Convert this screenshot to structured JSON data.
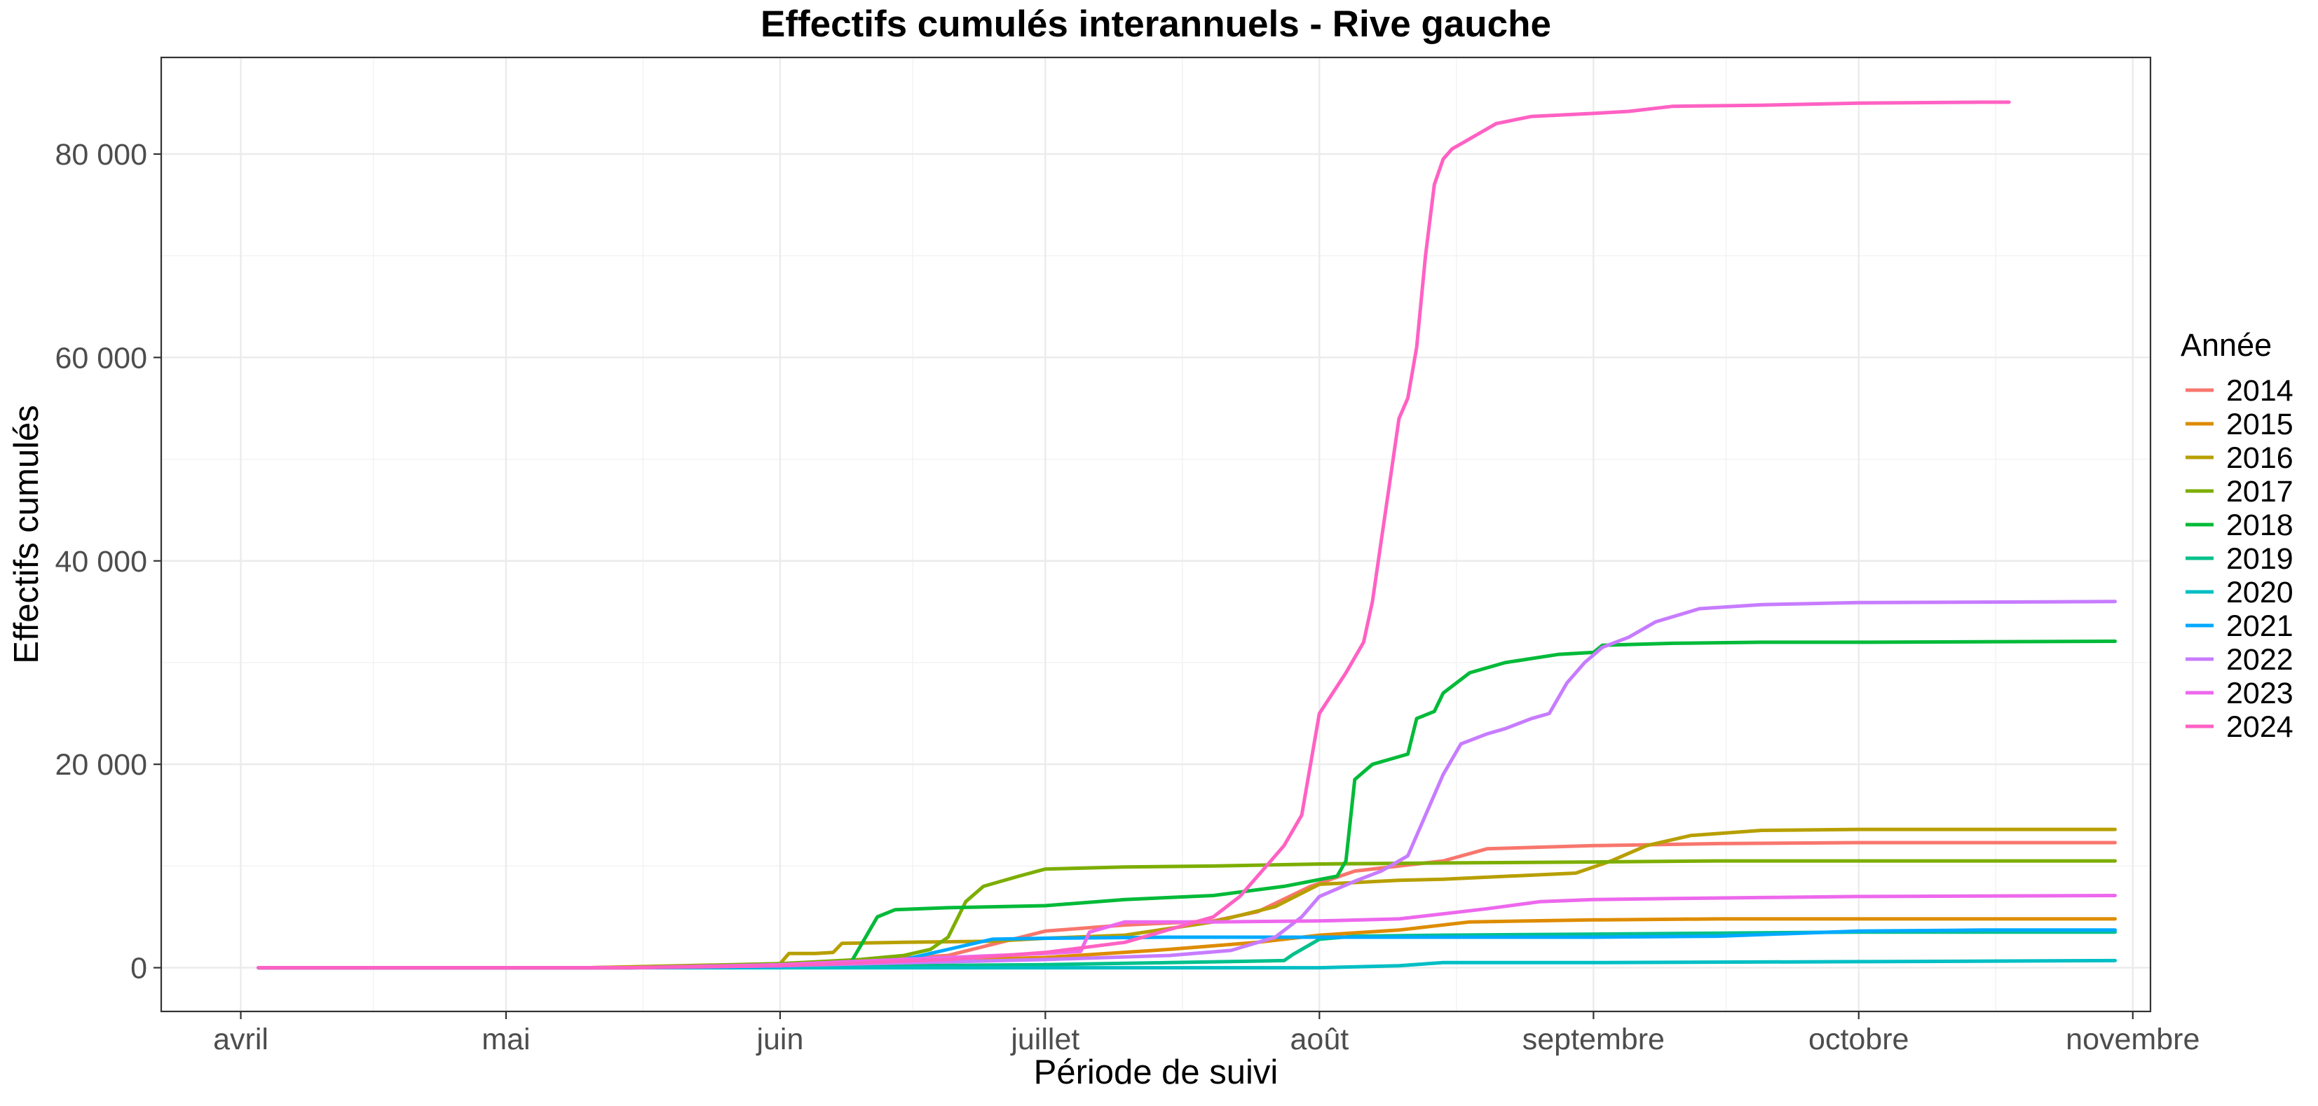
{
  "chart_data": {
    "type": "line",
    "title": "Effectifs cumulés interannuels - Rive gauche",
    "xlabel": "Période de suivi",
    "ylabel": "Effectifs cumulés",
    "x_unit": "date",
    "xlim": [
      "2000-03-23",
      "2000-11-03"
    ],
    "ylim": [
      -4300,
      89500
    ],
    "x_ticks": [
      {
        "label": "avril",
        "date": "2000-04-01"
      },
      {
        "label": "mai",
        "date": "2000-05-01"
      },
      {
        "label": "juin",
        "date": "2000-06-01"
      },
      {
        "label": "juillet",
        "date": "2000-07-01"
      },
      {
        "label": "août",
        "date": "2000-08-01"
      },
      {
        "label": "septembre",
        "date": "2000-09-01"
      },
      {
        "label": "octobre",
        "date": "2000-10-01"
      },
      {
        "label": "novembre",
        "date": "2000-11-01"
      }
    ],
    "y_ticks": [
      {
        "label": "0",
        "value": 0
      },
      {
        "label": "20 000",
        "value": 20000
      },
      {
        "label": "40 000",
        "value": 40000
      },
      {
        "label": "60 000",
        "value": 60000
      },
      {
        "label": "80 000",
        "value": 80000
      }
    ],
    "grid": true,
    "legend": {
      "title": "Année",
      "position": "right"
    },
    "series": [
      {
        "name": "2014",
        "color": "#F8766D",
        "points": [
          [
            "04-03",
            0
          ],
          [
            "05-15",
            0
          ],
          [
            "06-01",
            300
          ],
          [
            "06-20",
            1200
          ],
          [
            "07-01",
            3600
          ],
          [
            "07-10",
            4200
          ],
          [
            "07-20",
            4600
          ],
          [
            "07-25",
            5500
          ],
          [
            "07-31",
            8000
          ],
          [
            "08-05",
            9500
          ],
          [
            "08-15",
            10500
          ],
          [
            "08-20",
            11700
          ],
          [
            "09-01",
            12000
          ],
          [
            "09-15",
            12200
          ],
          [
            "10-01",
            12300
          ],
          [
            "10-30",
            12300
          ]
        ]
      },
      {
        "name": "2015",
        "color": "#DE8C00",
        "points": [
          [
            "04-03",
            0
          ],
          [
            "05-10",
            0
          ],
          [
            "06-01",
            300
          ],
          [
            "07-01",
            1000
          ],
          [
            "07-15",
            1800
          ],
          [
            "07-25",
            2500
          ],
          [
            "08-01",
            3200
          ],
          [
            "08-10",
            3700
          ],
          [
            "08-18",
            4500
          ],
          [
            "09-01",
            4700
          ],
          [
            "09-15",
            4800
          ],
          [
            "10-30",
            4800
          ]
        ]
      },
      {
        "name": "2016",
        "color": "#B79F00",
        "points": [
          [
            "04-03",
            0
          ],
          [
            "05-10",
            0
          ],
          [
            "06-01",
            400
          ],
          [
            "06-02",
            1400
          ],
          [
            "06-05",
            1400
          ],
          [
            "06-07",
            1500
          ],
          [
            "06-08",
            2400
          ],
          [
            "06-15",
            2500
          ],
          [
            "06-25",
            2600
          ],
          [
            "07-01",
            2900
          ],
          [
            "07-10",
            3200
          ],
          [
            "07-20",
            4500
          ],
          [
            "07-27",
            6000
          ],
          [
            "08-01",
            8200
          ],
          [
            "08-10",
            8600
          ],
          [
            "08-15",
            8700
          ],
          [
            "08-30",
            9300
          ],
          [
            "09-03",
            10500
          ],
          [
            "09-07",
            12000
          ],
          [
            "09-12",
            13000
          ],
          [
            "09-20",
            13500
          ],
          [
            "10-01",
            13600
          ],
          [
            "10-30",
            13600
          ]
        ]
      },
      {
        "name": "2017",
        "color": "#7CAE00",
        "points": [
          [
            "04-03",
            0
          ],
          [
            "05-15",
            0
          ],
          [
            "06-01",
            400
          ],
          [
            "06-10",
            800
          ],
          [
            "06-15",
            1200
          ],
          [
            "06-18",
            1800
          ],
          [
            "06-20",
            3000
          ],
          [
            "06-22",
            6500
          ],
          [
            "06-24",
            8000
          ],
          [
            "06-28",
            9000
          ],
          [
            "07-01",
            9700
          ],
          [
            "07-10",
            9900
          ],
          [
            "07-20",
            10000
          ],
          [
            "08-01",
            10200
          ],
          [
            "08-15",
            10300
          ],
          [
            "09-01",
            10400
          ],
          [
            "09-15",
            10500
          ],
          [
            "10-30",
            10500
          ]
        ]
      },
      {
        "name": "2018",
        "color": "#00BA38",
        "points": [
          [
            "04-03",
            0
          ],
          [
            "05-15",
            0
          ],
          [
            "06-01",
            300
          ],
          [
            "06-09",
            500
          ],
          [
            "06-10",
            2000
          ],
          [
            "06-12",
            5000
          ],
          [
            "06-14",
            5700
          ],
          [
            "06-20",
            5900
          ],
          [
            "07-01",
            6100
          ],
          [
            "07-10",
            6700
          ],
          [
            "07-20",
            7100
          ],
          [
            "07-28",
            8000
          ],
          [
            "08-03",
            9000
          ],
          [
            "08-04",
            10500
          ],
          [
            "08-05",
            18500
          ],
          [
            "08-07",
            20000
          ],
          [
            "08-09",
            20500
          ],
          [
            "08-11",
            21000
          ],
          [
            "08-12",
            24500
          ],
          [
            "08-14",
            25200
          ],
          [
            "08-15",
            27000
          ],
          [
            "08-18",
            29000
          ],
          [
            "08-22",
            30000
          ],
          [
            "08-28",
            30800
          ],
          [
            "09-01",
            31000
          ],
          [
            "09-02",
            31700
          ],
          [
            "09-10",
            31900
          ],
          [
            "09-20",
            32000
          ],
          [
            "10-01",
            32000
          ],
          [
            "10-30",
            32100
          ]
        ]
      },
      {
        "name": "2019",
        "color": "#00C08B",
        "points": [
          [
            "04-03",
            0
          ],
          [
            "05-15",
            0
          ],
          [
            "06-01",
            100
          ],
          [
            "06-15",
            200
          ],
          [
            "07-01",
            300
          ],
          [
            "07-15",
            500
          ],
          [
            "07-28",
            700
          ],
          [
            "07-29",
            1300
          ],
          [
            "08-01",
            2800
          ],
          [
            "08-05",
            3100
          ],
          [
            "08-15",
            3200
          ],
          [
            "09-01",
            3300
          ],
          [
            "09-15",
            3400
          ],
          [
            "10-01",
            3500
          ],
          [
            "10-30",
            3500
          ]
        ]
      },
      {
        "name": "2020",
        "color": "#00BFC4",
        "points": [
          [
            "04-03",
            0
          ],
          [
            "05-15",
            0
          ],
          [
            "06-01",
            0
          ],
          [
            "07-01",
            0
          ],
          [
            "08-01",
            0
          ],
          [
            "08-10",
            200
          ],
          [
            "08-15",
            500
          ],
          [
            "09-01",
            500
          ],
          [
            "10-01",
            600
          ],
          [
            "10-30",
            700
          ]
        ]
      },
      {
        "name": "2021",
        "color": "#00A9FF",
        "points": [
          [
            "04-03",
            0
          ],
          [
            "05-15",
            0
          ],
          [
            "06-01",
            100
          ],
          [
            "06-15",
            800
          ],
          [
            "06-21",
            2000
          ],
          [
            "06-25",
            2800
          ],
          [
            "07-01",
            2900
          ],
          [
            "07-15",
            3000
          ],
          [
            "08-01",
            3000
          ],
          [
            "09-01",
            3000
          ],
          [
            "09-15",
            3100
          ],
          [
            "10-01",
            3600
          ],
          [
            "10-15",
            3700
          ],
          [
            "10-30",
            3700
          ]
        ]
      },
      {
        "name": "2022",
        "color": "#C77CFF",
        "points": [
          [
            "04-03",
            0
          ],
          [
            "05-15",
            0
          ],
          [
            "06-01",
            200
          ],
          [
            "07-01",
            800
          ],
          [
            "07-15",
            1200
          ],
          [
            "07-22",
            1700
          ],
          [
            "07-27",
            3000
          ],
          [
            "07-30",
            5000
          ],
          [
            "08-01",
            7000
          ],
          [
            "08-05",
            8500
          ],
          [
            "08-08",
            9500
          ],
          [
            "08-11",
            11000
          ],
          [
            "08-13",
            15000
          ],
          [
            "08-15",
            19000
          ],
          [
            "08-17",
            22000
          ],
          [
            "08-20",
            23000
          ],
          [
            "08-22",
            23500
          ],
          [
            "08-25",
            24500
          ],
          [
            "08-27",
            25000
          ],
          [
            "08-29",
            28000
          ],
          [
            "08-31",
            30000
          ],
          [
            "09-02",
            31500
          ],
          [
            "09-05",
            32500
          ],
          [
            "09-08",
            34000
          ],
          [
            "09-13",
            35300
          ],
          [
            "09-20",
            35700
          ],
          [
            "10-01",
            35900
          ],
          [
            "10-30",
            36000
          ]
        ]
      },
      {
        "name": "2023",
        "color": "#ED68ED",
        "points": [
          [
            "04-03",
            0
          ],
          [
            "05-15",
            0
          ],
          [
            "06-01",
            300
          ],
          [
            "06-20",
            1000
          ],
          [
            "07-01",
            1400
          ],
          [
            "07-05",
            1600
          ],
          [
            "07-06",
            3500
          ],
          [
            "07-10",
            4500
          ],
          [
            "07-20",
            4500
          ],
          [
            "08-01",
            4600
          ],
          [
            "08-10",
            4800
          ],
          [
            "08-20",
            5800
          ],
          [
            "08-26",
            6500
          ],
          [
            "09-01",
            6700
          ],
          [
            "09-10",
            6800
          ],
          [
            "09-20",
            6900
          ],
          [
            "10-01",
            7000
          ],
          [
            "10-30",
            7100
          ]
        ]
      },
      {
        "name": "2024",
        "color": "#FF61C3",
        "points": [
          [
            "04-03",
            0
          ],
          [
            "05-15",
            0
          ],
          [
            "06-01",
            200
          ],
          [
            "06-20",
            800
          ],
          [
            "07-01",
            1500
          ],
          [
            "07-10",
            2500
          ],
          [
            "07-20",
            5000
          ],
          [
            "07-23",
            7000
          ],
          [
            "07-26",
            10000
          ],
          [
            "07-28",
            12000
          ],
          [
            "07-30",
            15000
          ],
          [
            "08-01",
            25000
          ],
          [
            "08-04",
            29000
          ],
          [
            "08-06",
            32000
          ],
          [
            "08-07",
            36000
          ],
          [
            "08-08",
            42000
          ],
          [
            "08-09",
            48000
          ],
          [
            "08-10",
            54000
          ],
          [
            "08-11",
            56000
          ],
          [
            "08-12",
            61000
          ],
          [
            "08-13",
            70000
          ],
          [
            "08-14",
            77000
          ],
          [
            "08-15",
            79500
          ],
          [
            "08-16",
            80500
          ],
          [
            "08-18",
            81500
          ],
          [
            "08-21",
            83000
          ],
          [
            "08-25",
            83700
          ],
          [
            "09-01",
            84000
          ],
          [
            "09-05",
            84200
          ],
          [
            "09-10",
            84700
          ],
          [
            "09-20",
            84800
          ],
          [
            "10-01",
            85000
          ],
          [
            "10-15",
            85100
          ],
          [
            "10-18",
            85100
          ]
        ]
      }
    ]
  }
}
